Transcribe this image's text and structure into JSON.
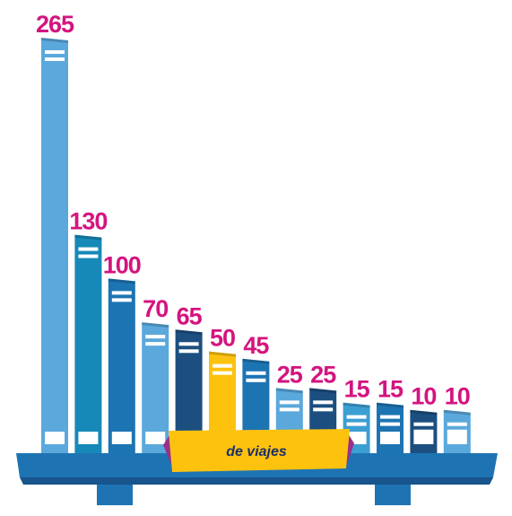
{
  "chart_data": {
    "type": "bar",
    "values": [
      265,
      130,
      100,
      70,
      65,
      50,
      45,
      25,
      25,
      15,
      15,
      10,
      10
    ],
    "value_labels": [
      "265",
      "130",
      "100",
      "70",
      "65",
      "50",
      "45",
      "25",
      "25",
      "15",
      "15",
      "10",
      "10"
    ],
    "banner_text": "de viajes",
    "colors": {
      "bars": [
        "#5aa8dc",
        "#1689b8",
        "#1d74b3",
        "#5aa8dc",
        "#1c4f80",
        "#fdc20e",
        "#1d74b3",
        "#5aa8dc",
        "#1c4f80",
        "#3c9fd3",
        "#1d74b3",
        "#1c4f80",
        "#5aa8dc"
      ],
      "label": "#d4147f",
      "shelf": "#1e74b3",
      "shelf_dark": "#17558c",
      "banner": "#fdc20e",
      "banner_fold": "#9c2f8a",
      "banner_text": "#1b2f6b"
    }
  }
}
